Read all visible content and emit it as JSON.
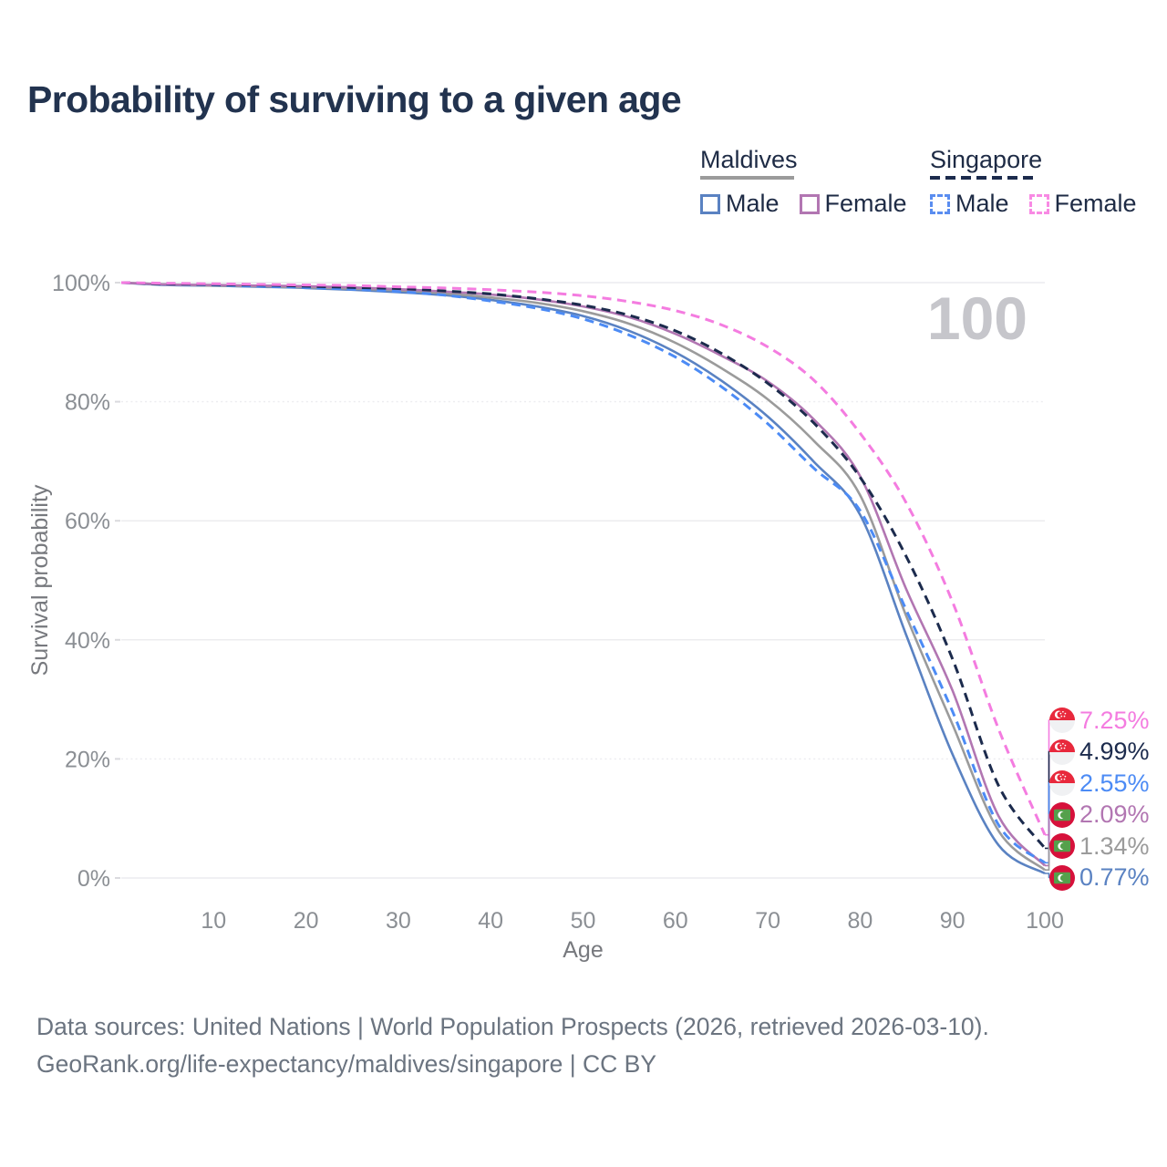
{
  "title": "Probability of surviving to a given age",
  "watermark_age": "100",
  "legend": {
    "groups": [
      {
        "label": "Maldives",
        "line_style": "solid",
        "line_color": "#9b9b9b",
        "items": [
          {
            "label": "Male",
            "color": "#5a82c2",
            "dashed": false
          },
          {
            "label": "Female",
            "color": "#b276b2",
            "dashed": false
          }
        ]
      },
      {
        "label": "Singapore",
        "line_style": "dashed",
        "line_color": "#1c2b4d",
        "items": [
          {
            "label": "Male",
            "color": "#5a8df0",
            "dashed": true
          },
          {
            "label": "Female",
            "color": "#f88ae4",
            "dashed": true
          }
        ]
      }
    ]
  },
  "chart_data": {
    "type": "line",
    "title": "Probability of surviving to a given age",
    "xlabel": "Age",
    "ylabel": "Survival probability",
    "xlim": [
      0,
      100
    ],
    "ylim": [
      0,
      100
    ],
    "x_ticks": [
      10,
      20,
      30,
      40,
      50,
      60,
      70,
      80,
      90,
      100
    ],
    "y_ticks": [
      0,
      20,
      40,
      60,
      80,
      100
    ],
    "y_tick_suffix": "%",
    "grid": true,
    "dotted_gridlines": [
      20,
      80
    ],
    "legend_position": "top-right",
    "x": [
      0,
      5,
      10,
      15,
      20,
      25,
      30,
      35,
      40,
      45,
      50,
      55,
      60,
      65,
      70,
      75,
      80,
      85,
      90,
      95,
      100
    ],
    "series": [
      {
        "name": "Singapore Female",
        "country": "Singapore",
        "sex": "Female",
        "flag": "singapore",
        "color": "#f47ce0",
        "dashed": true,
        "end_label": "7.25%",
        "values": [
          100,
          99.9,
          99.8,
          99.7,
          99.6,
          99.5,
          99.3,
          99.1,
          98.8,
          98.4,
          97.8,
          96.8,
          95.3,
          92.9,
          89.2,
          83.6,
          74.7,
          63.0,
          46.4,
          25.0,
          7.25
        ]
      },
      {
        "name": "Singapore",
        "country": "Singapore",
        "sex": "Both",
        "flag": "singapore",
        "color": "#1c2b4d",
        "dashed": true,
        "end_label": "4.99%",
        "values": [
          100,
          99.8,
          99.7,
          99.6,
          99.4,
          99.2,
          99.0,
          98.6,
          98.1,
          97.3,
          96.2,
          94.5,
          91.9,
          88.1,
          83.1,
          76.4,
          67.3,
          54.0,
          36.8,
          15.5,
          4.99
        ]
      },
      {
        "name": "Singapore Male",
        "country": "Singapore",
        "sex": "Male",
        "flag": "singapore",
        "color": "#4c8bf5",
        "dashed": true,
        "end_label": "2.55%",
        "values": [
          100,
          99.8,
          99.6,
          99.4,
          99.2,
          98.9,
          98.5,
          97.9,
          96.9,
          95.7,
          93.9,
          91.2,
          87.5,
          82.5,
          76.3,
          68.8,
          61.7,
          45.0,
          28.0,
          8.9,
          2.55
        ]
      },
      {
        "name": "Maldives Female",
        "country": "Maldives",
        "sex": "Female",
        "flag": "maldives",
        "color": "#b276b2",
        "dashed": false,
        "end_label": "2.09%",
        "values": [
          100,
          99.7,
          99.6,
          99.5,
          99.4,
          99.2,
          98.9,
          98.5,
          98.0,
          97.2,
          96.0,
          94.2,
          91.4,
          87.7,
          83.4,
          77.0,
          67.5,
          48.5,
          31.5,
          10.4,
          2.09
        ]
      },
      {
        "name": "Maldives",
        "country": "Maldives",
        "sex": "Both",
        "flag": "maldives",
        "color": "#9b9b9b",
        "dashed": false,
        "end_label": "1.34%",
        "values": [
          100,
          99.7,
          99.5,
          99.4,
          99.2,
          99.0,
          98.7,
          98.2,
          97.5,
          96.6,
          95.2,
          93.1,
          89.9,
          85.6,
          80.4,
          73.4,
          64.3,
          44.0,
          25.8,
          7.9,
          1.34
        ]
      },
      {
        "name": "Maldives Male",
        "country": "Maldives",
        "sex": "Male",
        "flag": "maldives",
        "color": "#5a82c2",
        "dashed": false,
        "end_label": "0.77%",
        "values": [
          100,
          99.6,
          99.5,
          99.3,
          99.1,
          98.8,
          98.4,
          97.9,
          97.1,
          96.0,
          94.4,
          91.9,
          88.3,
          83.5,
          77.5,
          69.9,
          61.0,
          40.8,
          20.8,
          5.5,
          0.77
        ]
      }
    ]
  },
  "footer": {
    "line1": "Data sources: United Nations | World Population Prospects (2026, retrieved 2026-03-10).",
    "line2": "GeoRank.org/life-expectancy/maldives/singapore | CC BY"
  },
  "colors": {
    "title": "#22334f",
    "axis_text": "#8b8f94",
    "gridline": "#ececef",
    "watermark": "#c6c6cb",
    "footer_text": "#6b7480"
  }
}
